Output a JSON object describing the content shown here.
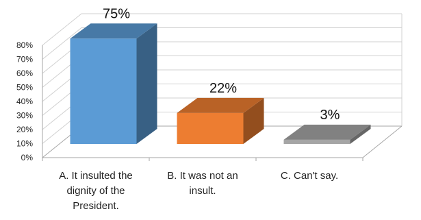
{
  "chart_data": {
    "type": "bar",
    "style": "3d-column",
    "categories": [
      "A. It insulted the dignity of the President.",
      "B. It was not an insult.",
      "C. Can't say."
    ],
    "category_lines": [
      [
        "A. It insulted the",
        "dignity of the",
        "President."
      ],
      [
        "B. It was not an",
        "insult."
      ],
      [
        "C. Can't say."
      ]
    ],
    "values": [
      75,
      22,
      3
    ],
    "data_labels": [
      "75%",
      "22%",
      "3%"
    ],
    "colors": [
      "#5b9bd5",
      "#ed7d31",
      "#a5a5a5"
    ],
    "ylim": [
      0,
      80
    ],
    "yticks": [
      0,
      10,
      20,
      30,
      40,
      50,
      60,
      70,
      80
    ],
    "ytick_labels": [
      "0%",
      "10%",
      "20%",
      "30%",
      "40%",
      "50%",
      "60%",
      "70%",
      "80%"
    ],
    "grid": true,
    "legend": false,
    "title": "",
    "xlabel": "",
    "ylabel": ""
  }
}
